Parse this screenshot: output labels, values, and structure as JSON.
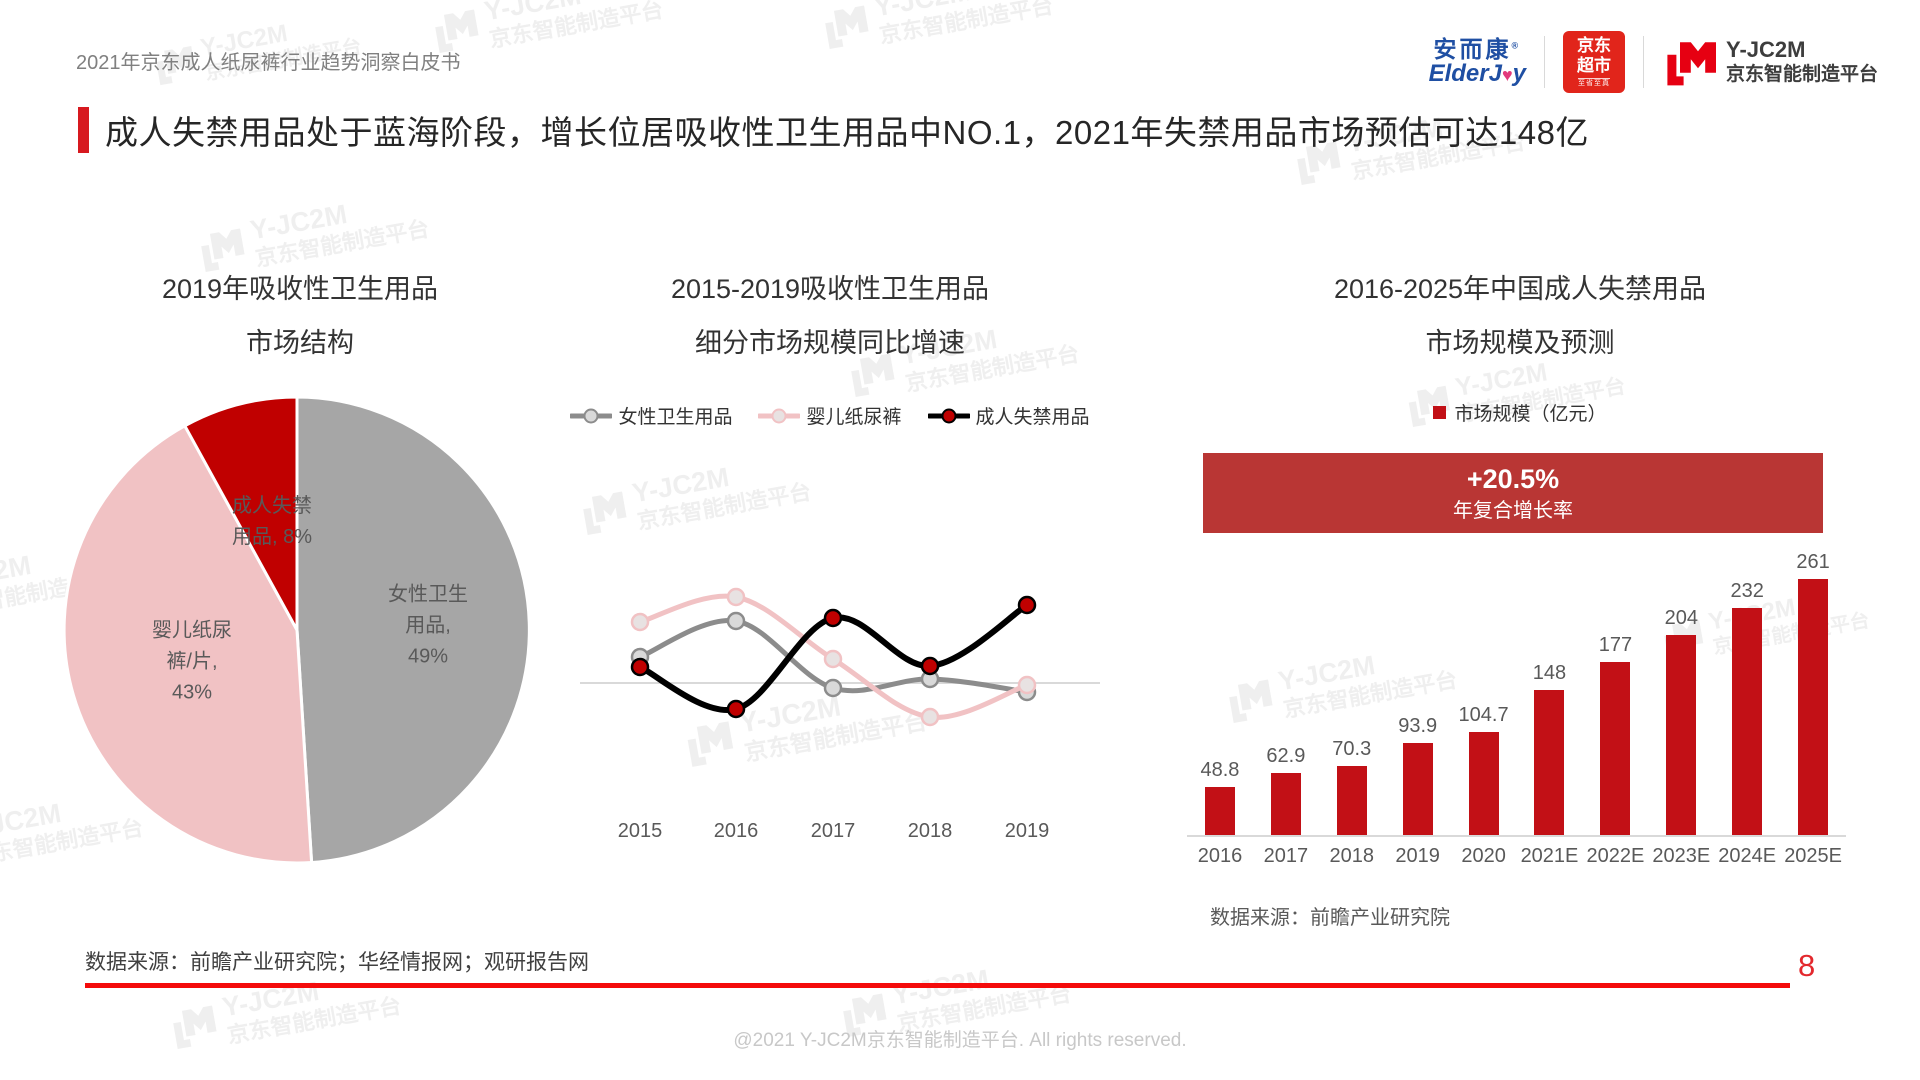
{
  "page": {
    "doc_title": "2021年京东成人纸尿裤行业趋势洞察白皮书",
    "headline": "成人失禁用品处于蓝海阶段，增长位居吸收性卫生用品中NO.1，2021年失禁用品市场预估可达148亿",
    "page_number": "8",
    "source_left": "数据来源：前瞻产业研究院；华经情报网；观研报告网",
    "footer_copyright": "@2021 Y-JC2M京东智能制造平台. All rights reserved.",
    "accent_red": "#D7191F",
    "bottom_line_red": "#F40B0B"
  },
  "logos": {
    "elderjoy_cn": "安而康",
    "elderjoy_reg": "®",
    "elderjoy_en_left": "ElderJ",
    "elderjoy_en_heart": "♥",
    "elderjoy_en_right": "y",
    "jd_box_line1": "京东",
    "jd_box_line2": "超市",
    "jd_box_sub": "至省至真",
    "yjc2m_name": "Y-JC2M",
    "yjc2m_sub": "京东智能制造平台",
    "jd_red": "#E1251B",
    "elderjoy_blue": "#1F4FA3",
    "yjc2m_red": "#E60012"
  },
  "watermark": {
    "line1": "Y-JC2M",
    "line2": "京东智能制造平台"
  },
  "chart_data": [
    {
      "type": "pie",
      "title": "2019年吸收性卫生用品\n市场结构",
      "slices": [
        {
          "label": "女性卫生用品",
          "value": 49,
          "color": "#A6A6A6",
          "display": "女性卫生\n用品,\n49%"
        },
        {
          "label": "婴儿纸尿裤/片",
          "value": 43,
          "color": "#F1C2C4",
          "display": "婴儿纸尿\n裤/片,\n43%"
        },
        {
          "label": "成人失禁用品",
          "value": 8,
          "color": "#C00000",
          "display": "成人失禁\n用品, 8%"
        }
      ],
      "start_angle_deg": 0,
      "direction": "clockwise",
      "label_color": "#595959"
    },
    {
      "type": "line",
      "title": "2015-2019吸收性卫生用品\n细分市场规模同比增速",
      "x": [
        "2015",
        "2016",
        "2017",
        "2018",
        "2019"
      ],
      "series": [
        {
          "name": "女性卫生用品",
          "color": "#8C8C8C",
          "marker_fill": "#D9D9D9",
          "values": [
            4.0,
            9.5,
            -0.8,
            0.6,
            -1.4
          ]
        },
        {
          "name": "婴儿纸尿裤",
          "color": "#F1C2C4",
          "marker_fill": "#E8E2E2",
          "values": [
            9.4,
            13.2,
            3.7,
            -5.2,
            -0.3
          ]
        },
        {
          "name": "成人失禁用品",
          "color": "#000000",
          "marker_fill": "#C00000",
          "values": [
            2.5,
            -4.0,
            10.0,
            2.6,
            12.0
          ]
        }
      ],
      "values_estimated": true,
      "baseline": 0,
      "grid": false,
      "legend_position": "top"
    },
    {
      "type": "bar",
      "title": "2016-2025年中国成人失禁用品\n市场规模及预测",
      "legend": "市场规模（亿元）",
      "bar_color": "#C21016",
      "categories": [
        "2016",
        "2017",
        "2018",
        "2019",
        "2020",
        "2021E",
        "2022E",
        "2023E",
        "2024E",
        "2025E"
      ],
      "values": [
        48.8,
        62.9,
        70.3,
        93.9,
        104.7,
        148,
        177,
        204,
        232,
        261
      ],
      "ylim": [
        0,
        280
      ],
      "cagr_banner": {
        "line1": "+20.5%",
        "line2": "年复合增长率",
        "bg": "#B93634"
      },
      "source": "数据来源：前瞻产业研究院"
    }
  ]
}
